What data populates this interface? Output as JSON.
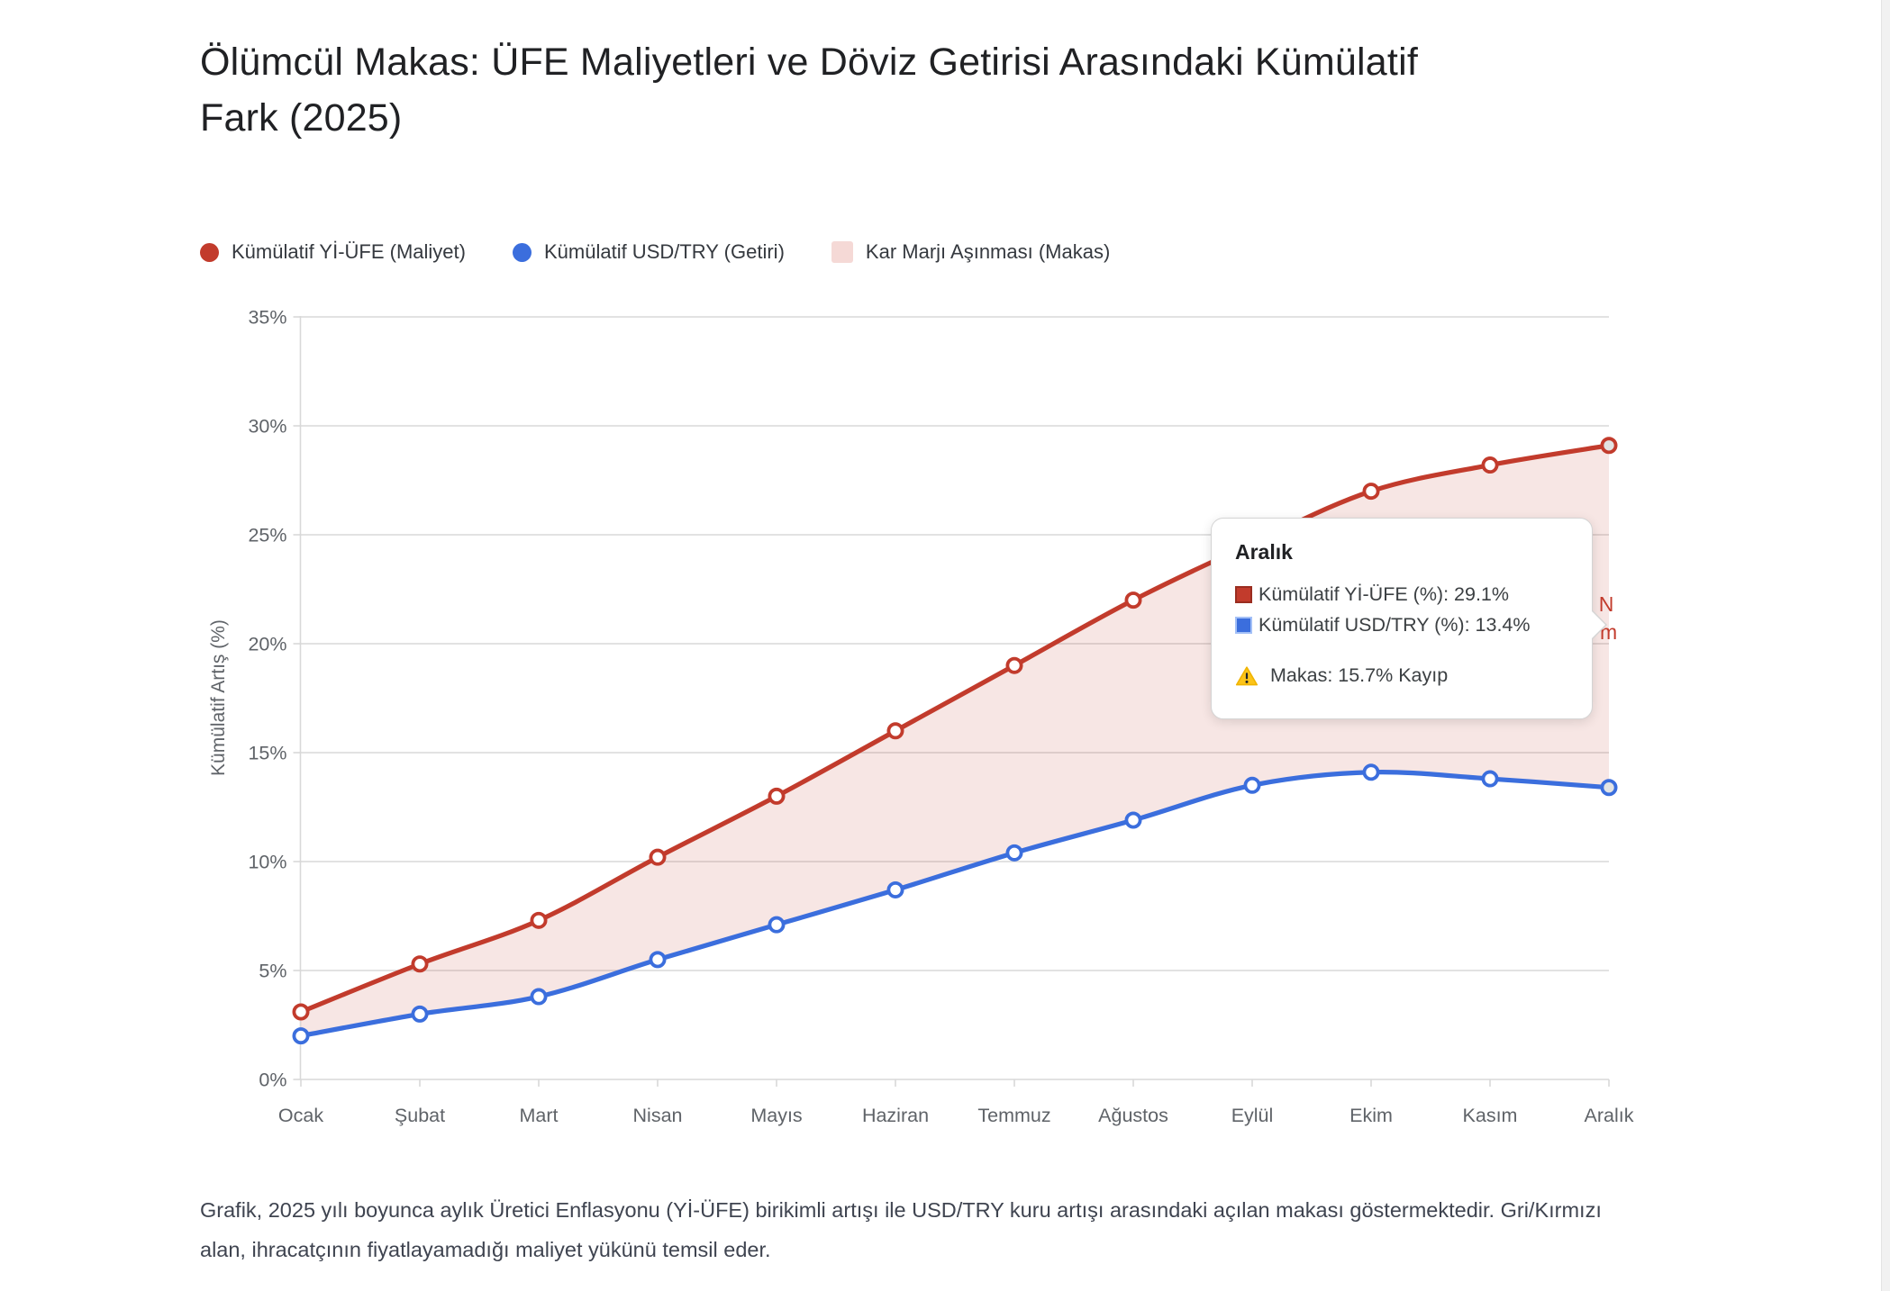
{
  "page": {
    "title": "Ölümcül Makas: ÜFE Maliyetleri ve Döviz Getirisi Arasındaki Kümülatif Fark (2025)",
    "footer": "Grafik, 2025 yılı boyunca aylık Üretici Enflasyonu (Yİ-ÜFE) birikimli artışı ile USD/TRY kuru artışı arasındaki açılan makası göstermektedir. Gri/Kırmızı alan, ihracatçının fiyatlayamadığı maliyet yükünü temsil eder."
  },
  "legend": {
    "items": [
      {
        "label": "Kümülatif Yİ-ÜFE (Maliyet)",
        "color": "#c23b2c",
        "shape": "dot"
      },
      {
        "label": "Kümülatif USD/TRY (Getiri)",
        "color": "#3b6edd",
        "shape": "dot"
      },
      {
        "label": "Kar Marjı Aşınması (Makas)",
        "color": "#f5d9d6",
        "shape": "square"
      }
    ]
  },
  "chart_data": {
    "type": "line",
    "title": "Ölümcül Makas: ÜFE Maliyetleri ve Döviz Getirisi Arasındaki Kümülatif Fark (2025)",
    "ylabel": "Kümülatif Artış (%)",
    "xlabel": "",
    "ylim": [
      0,
      35
    ],
    "ytick_step": 5,
    "grid": true,
    "legend_position": "top",
    "categories": [
      "Ocak",
      "Şubat",
      "Mart",
      "Nisan",
      "Mayıs",
      "Haziran",
      "Temmuz",
      "Ağustos",
      "Eylül",
      "Ekim",
      "Kasım",
      "Aralık"
    ],
    "yticks": [
      {
        "value": 0,
        "label": "0%"
      },
      {
        "value": 5,
        "label": "5%"
      },
      {
        "value": 10,
        "label": "10%"
      },
      {
        "value": 15,
        "label": "15%"
      },
      {
        "value": 20,
        "label": "20%"
      },
      {
        "value": 25,
        "label": "25%"
      },
      {
        "value": 30,
        "label": "30%"
      },
      {
        "value": 35,
        "label": "35%"
      }
    ],
    "series": [
      {
        "key": "yiufe",
        "name": "Kümülatif Yİ-ÜFE (Maliyet)",
        "color": "#c23b2c",
        "values": [
          3.1,
          5.3,
          7.3,
          10.2,
          13.0,
          16.0,
          19.0,
          22.0,
          24.6,
          27.0,
          28.2,
          29.1
        ]
      },
      {
        "key": "usdtry",
        "name": "Kümülatif USD/TRY (Getiri)",
        "color": "#3b6edd",
        "values": [
          2.0,
          3.0,
          3.8,
          5.5,
          7.1,
          8.7,
          10.4,
          11.9,
          13.5,
          14.1,
          13.8,
          13.4
        ]
      }
    ],
    "area": {
      "label": "Kar Marjı Aşınması (Makas)",
      "between": [
        "yiufe",
        "usdtry"
      ],
      "color": "rgba(194,59,44,0.13)"
    },
    "highlighted_point": "Aralık",
    "grid_color": "#d8d8d8",
    "tick_color": "#5f6368"
  },
  "annotation": {
    "color": "#c23b2c",
    "fragments": [
      "' N",
      "m"
    ]
  },
  "tooltip": {
    "title": "Aralık",
    "rows": [
      {
        "text": "Kümülatif Yİ-ÜFE (%): 29.1%",
        "swatch_color": "#c23b2c",
        "swatch_border": "#9a2d20"
      },
      {
        "text": "Kümülatif USD/TRY (%): 13.4%",
        "swatch_color": "#3b6edd",
        "swatch_border": "#a3c0f7"
      }
    ],
    "warning_text": "Makas: 15.7% Kayıp",
    "warning_icon_color": "#fcc419"
  }
}
